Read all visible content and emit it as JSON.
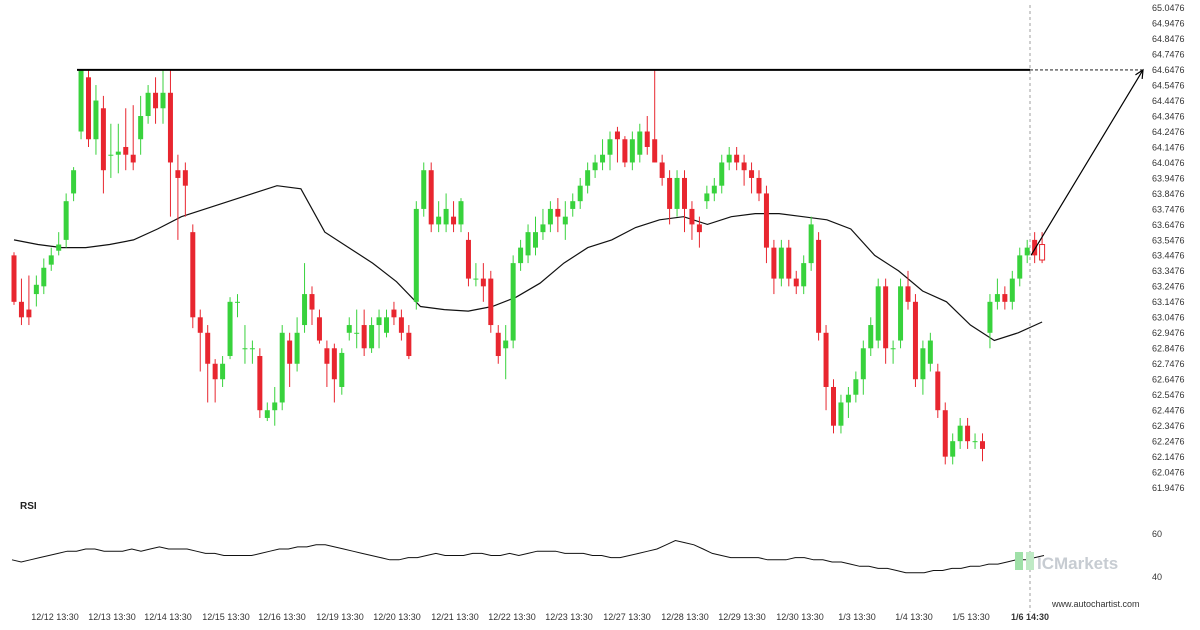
{
  "chart_data": {
    "type": "candlestick",
    "price_axis": {
      "ticks": [
        "65.0476",
        "64.9476",
        "64.8476",
        "64.7476",
        "64.6476",
        "64.5476",
        "64.4476",
        "64.3476",
        "64.2476",
        "64.1476",
        "64.0476",
        "63.9476",
        "63.8476",
        "63.7476",
        "63.6476",
        "63.5476",
        "63.4476",
        "63.3476",
        "63.2476",
        "63.1476",
        "63.0476",
        "62.9476",
        "62.8476",
        "62.7476",
        "62.6476",
        "62.5476",
        "62.4476",
        "62.3476",
        "62.2476",
        "62.1476",
        "62.0476",
        "61.9476"
      ],
      "ylim": [
        61.9476,
        65.0476
      ]
    },
    "x_labels": [
      "12/12 13:30",
      "12/13 13:30",
      "12/14 13:30",
      "12/15 13:30",
      "12/16 13:30",
      "12/19 13:30",
      "12/20 13:30",
      "12/21 13:30",
      "12/22 13:30",
      "12/23 13:30",
      "12/27 13:30",
      "12/28 13:30",
      "12/29 13:30",
      "12/30 13:30",
      "1/3 13:30",
      "1/4 13:30",
      "1/5 13:30",
      "1/6 14:30"
    ],
    "highlighted_x_label": "1/6 14:30",
    "resistance_level": 64.6476,
    "projection_target": 64.6476,
    "candles": [
      [
        63.45,
        63.15,
        63.47,
        63.13
      ],
      [
        63.15,
        63.05,
        63.3,
        63.0
      ],
      [
        63.1,
        63.05,
        63.32,
        63.0
      ],
      [
        63.2,
        63.26,
        63.32,
        63.12
      ],
      [
        63.25,
        63.37,
        63.43,
        63.2
      ],
      [
        63.39,
        63.45,
        63.5,
        63.35
      ],
      [
        63.48,
        63.52,
        63.6,
        63.45
      ],
      [
        63.55,
        63.8,
        63.85,
        63.5
      ],
      [
        63.85,
        64.0,
        64.02,
        63.8
      ],
      [
        64.25,
        64.65,
        64.65,
        64.2
      ],
      [
        64.6,
        64.2,
        64.65,
        64.15
      ],
      [
        64.2,
        64.45,
        64.55,
        64.1
      ],
      [
        64.4,
        64.0,
        64.48,
        63.85
      ],
      [
        64.1,
        64.1,
        64.3,
        63.95
      ],
      [
        64.1,
        64.12,
        64.3,
        63.98
      ],
      [
        64.15,
        64.1,
        64.4,
        64.0
      ],
      [
        64.1,
        64.05,
        64.42,
        64.0
      ],
      [
        64.2,
        64.35,
        64.48,
        64.1
      ],
      [
        64.35,
        64.5,
        64.55,
        64.3
      ],
      [
        64.5,
        64.4,
        64.6,
        64.3
      ],
      [
        64.4,
        64.5,
        64.65,
        64.3
      ],
      [
        64.5,
        64.05,
        64.65,
        63.7
      ],
      [
        64.0,
        63.95,
        64.1,
        63.55
      ],
      [
        64.0,
        63.9,
        64.05,
        63.7
      ],
      [
        63.6,
        63.05,
        63.65,
        62.98
      ],
      [
        63.05,
        62.95,
        63.1,
        62.7
      ],
      [
        62.95,
        62.75,
        63.0,
        62.5
      ],
      [
        62.75,
        62.65,
        62.78,
        62.5
      ],
      [
        62.65,
        62.75,
        62.8,
        62.6
      ],
      [
        62.8,
        63.15,
        63.18,
        62.78
      ],
      [
        63.15,
        63.15,
        63.2,
        63.05
      ],
      [
        62.85,
        62.85,
        63.0,
        62.75
      ],
      [
        62.85,
        62.85,
        62.9,
        62.75
      ],
      [
        62.8,
        62.45,
        62.85,
        62.4
      ],
      [
        62.4,
        62.45,
        62.5,
        62.38
      ],
      [
        62.45,
        62.5,
        62.6,
        62.35
      ],
      [
        62.5,
        62.95,
        63.0,
        62.45
      ],
      [
        62.9,
        62.75,
        62.95,
        62.6
      ],
      [
        62.75,
        62.95,
        63.05,
        62.7
      ],
      [
        63.0,
        63.2,
        63.4,
        62.95
      ],
      [
        63.2,
        63.1,
        63.25,
        63.0
      ],
      [
        63.05,
        62.9,
        63.1,
        62.88
      ],
      [
        62.85,
        62.75,
        62.9,
        62.6
      ],
      [
        62.85,
        62.65,
        62.88,
        62.5
      ],
      [
        62.6,
        62.82,
        62.85,
        62.55
      ],
      [
        62.95,
        63.0,
        63.05,
        62.9
      ],
      [
        62.95,
        62.95,
        63.1,
        62.85
      ],
      [
        63.0,
        62.85,
        63.1,
        62.8
      ],
      [
        62.85,
        63.0,
        63.05,
        62.82
      ],
      [
        63.0,
        63.05,
        63.1,
        62.85
      ],
      [
        62.95,
        63.05,
        63.1,
        62.92
      ],
      [
        63.1,
        63.05,
        63.15,
        63.0
      ],
      [
        63.05,
        62.95,
        63.1,
        62.9
      ],
      [
        62.95,
        62.8,
        63.0,
        62.78
      ],
      [
        63.15,
        63.75,
        63.8,
        63.1
      ],
      [
        63.75,
        64.0,
        64.05,
        63.7
      ],
      [
        64.0,
        63.65,
        64.05,
        63.6
      ],
      [
        63.65,
        63.7,
        63.8,
        63.6
      ],
      [
        63.65,
        63.75,
        63.85,
        63.6
      ],
      [
        63.7,
        63.65,
        63.8,
        63.6
      ],
      [
        63.65,
        63.8,
        63.82,
        63.6
      ],
      [
        63.55,
        63.3,
        63.6,
        63.25
      ],
      [
        63.3,
        63.3,
        63.4,
        63.25
      ],
      [
        63.3,
        63.25,
        63.4,
        63.15
      ],
      [
        63.3,
        63.0,
        63.35,
        62.95
      ],
      [
        62.95,
        62.8,
        63.0,
        62.75
      ],
      [
        62.85,
        62.9,
        63.0,
        62.65
      ],
      [
        62.9,
        63.4,
        63.45,
        62.85
      ],
      [
        63.4,
        63.5,
        63.55,
        63.35
      ],
      [
        63.45,
        63.6,
        63.65,
        63.4
      ],
      [
        63.5,
        63.6,
        63.7,
        63.45
      ],
      [
        63.6,
        63.65,
        63.75,
        63.55
      ],
      [
        63.65,
        63.75,
        63.8,
        63.6
      ],
      [
        63.75,
        63.7,
        63.82,
        63.6
      ],
      [
        63.65,
        63.7,
        63.8,
        63.55
      ],
      [
        63.75,
        63.8,
        63.85,
        63.7
      ],
      [
        63.8,
        63.9,
        63.95,
        63.75
      ],
      [
        63.9,
        64.0,
        64.05,
        63.85
      ],
      [
        64.0,
        64.05,
        64.1,
        63.95
      ],
      [
        64.05,
        64.1,
        64.2,
        64.0
      ],
      [
        64.1,
        64.2,
        64.25,
        64.0
      ],
      [
        64.25,
        64.2,
        64.28,
        64.05
      ],
      [
        64.2,
        64.05,
        64.22,
        64.02
      ],
      [
        64.05,
        64.2,
        64.25,
        64.0
      ],
      [
        64.1,
        64.25,
        64.3,
        64.05
      ],
      [
        64.25,
        64.15,
        64.35,
        64.1
      ],
      [
        64.2,
        64.05,
        64.65,
        64.05
      ],
      [
        64.05,
        63.95,
        64.1,
        63.9
      ],
      [
        63.95,
        63.75,
        64.0,
        63.65
      ],
      [
        63.75,
        63.95,
        64.0,
        63.7
      ],
      [
        63.95,
        63.75,
        64.0,
        63.6
      ],
      [
        63.75,
        63.65,
        63.8,
        63.55
      ],
      [
        63.65,
        63.6,
        63.7,
        63.5
      ],
      [
        63.8,
        63.85,
        63.9,
        63.75
      ],
      [
        63.85,
        63.9,
        63.95,
        63.8
      ],
      [
        63.9,
        64.05,
        64.1,
        63.85
      ],
      [
        64.05,
        64.1,
        64.15,
        64.0
      ],
      [
        64.1,
        64.05,
        64.15,
        64.0
      ],
      [
        64.05,
        64.0,
        64.1,
        63.9
      ],
      [
        64.0,
        63.95,
        64.05,
        63.85
      ],
      [
        63.95,
        63.85,
        64.0,
        63.8
      ],
      [
        63.85,
        63.5,
        63.9,
        63.4
      ],
      [
        63.5,
        63.3,
        63.55,
        63.2
      ],
      [
        63.3,
        63.5,
        63.55,
        63.25
      ],
      [
        63.5,
        63.3,
        63.55,
        63.25
      ],
      [
        63.3,
        63.25,
        63.35,
        63.2
      ],
      [
        63.25,
        63.4,
        63.45,
        63.2
      ],
      [
        63.4,
        63.65,
        63.7,
        63.35
      ],
      [
        63.55,
        62.95,
        63.6,
        62.9
      ],
      [
        62.95,
        62.6,
        63.0,
        62.45
      ],
      [
        62.6,
        62.35,
        62.65,
        62.3
      ],
      [
        62.35,
        62.5,
        62.55,
        62.3
      ],
      [
        62.5,
        62.55,
        62.6,
        62.4
      ],
      [
        62.55,
        62.65,
        62.7,
        62.5
      ],
      [
        62.65,
        62.85,
        62.9,
        62.55
      ],
      [
        62.85,
        63.0,
        63.05,
        62.8
      ],
      [
        62.9,
        63.25,
        63.3,
        62.85
      ],
      [
        63.25,
        62.85,
        63.3,
        62.75
      ],
      [
        62.85,
        62.85,
        62.9,
        62.75
      ],
      [
        62.9,
        63.25,
        63.3,
        62.85
      ],
      [
        63.25,
        63.15,
        63.35,
        63.1
      ],
      [
        63.15,
        62.65,
        63.2,
        62.6
      ],
      [
        62.65,
        62.85,
        62.9,
        62.55
      ],
      [
        62.75,
        62.9,
        62.95,
        62.7
      ],
      [
        62.7,
        62.45,
        62.75,
        62.4
      ],
      [
        62.45,
        62.15,
        62.5,
        62.1
      ],
      [
        62.15,
        62.25,
        62.3,
        62.1
      ],
      [
        62.25,
        62.35,
        62.4,
        62.2
      ],
      [
        62.35,
        62.25,
        62.4,
        62.2
      ],
      [
        62.25,
        62.25,
        62.3,
        62.2
      ],
      [
        62.25,
        62.2,
        62.3,
        62.12
      ],
      [
        62.95,
        63.15,
        63.2,
        62.85
      ],
      [
        63.15,
        63.2,
        63.3,
        63.1
      ],
      [
        63.2,
        63.15,
        63.25,
        63.1
      ],
      [
        63.15,
        63.3,
        63.35,
        63.1
      ],
      [
        63.3,
        63.45,
        63.5,
        63.25
      ],
      [
        63.45,
        63.5,
        63.55,
        63.4
      ],
      [
        63.55,
        63.45,
        63.6,
        63.4
      ]
    ],
    "moving_average": [
      63.55,
      63.52,
      63.5,
      63.5,
      63.52,
      63.55,
      63.62,
      63.7,
      63.75,
      63.8,
      63.85,
      63.9,
      63.88,
      63.6,
      63.5,
      63.4,
      63.28,
      63.12,
      63.1,
      63.09,
      63.12,
      63.18,
      63.27,
      63.4,
      63.5,
      63.55,
      63.63,
      63.68,
      63.7,
      63.65,
      63.7,
      63.72,
      63.72,
      63.7,
      63.68,
      63.62,
      63.45,
      63.35,
      63.22,
      63.15,
      63.0,
      62.9,
      62.95,
      63.02
    ],
    "rsi": {
      "title": "RSI",
      "ticks": [
        "60",
        "40"
      ],
      "ylim": [
        30,
        70
      ],
      "values": [
        48,
        47,
        48,
        49,
        50,
        51,
        52,
        52,
        53,
        53,
        52,
        52,
        52,
        53,
        52,
        53,
        54,
        53,
        53,
        53,
        52,
        51,
        51,
        50,
        50,
        50,
        50,
        51,
        52,
        53,
        53,
        54,
        54,
        55,
        55,
        54,
        53,
        52,
        51,
        50,
        49,
        48,
        48,
        49,
        49,
        50,
        51,
        50,
        50,
        50,
        51,
        51,
        50,
        50,
        51,
        50,
        51,
        52,
        52,
        52,
        51,
        51,
        51,
        50,
        50,
        49,
        49,
        50,
        51,
        52,
        53,
        55,
        57,
        56,
        55,
        53,
        51,
        50,
        49,
        49,
        49,
        49,
        48,
        48,
        48,
        49,
        49,
        48,
        48,
        47,
        47,
        46,
        45,
        45,
        44,
        44,
        43,
        42,
        42,
        42,
        43,
        43,
        44,
        44,
        45,
        45,
        46,
        46,
        47,
        48,
        48,
        49,
        50
      ]
    },
    "colors": {
      "up": "#38d23c",
      "down": "#e8262f",
      "ma": "#111111",
      "resistance": "#000000",
      "arrow": "#000000"
    }
  },
  "watermark": {
    "brand": "ICMarkets",
    "site": "www.autochartist.com"
  }
}
